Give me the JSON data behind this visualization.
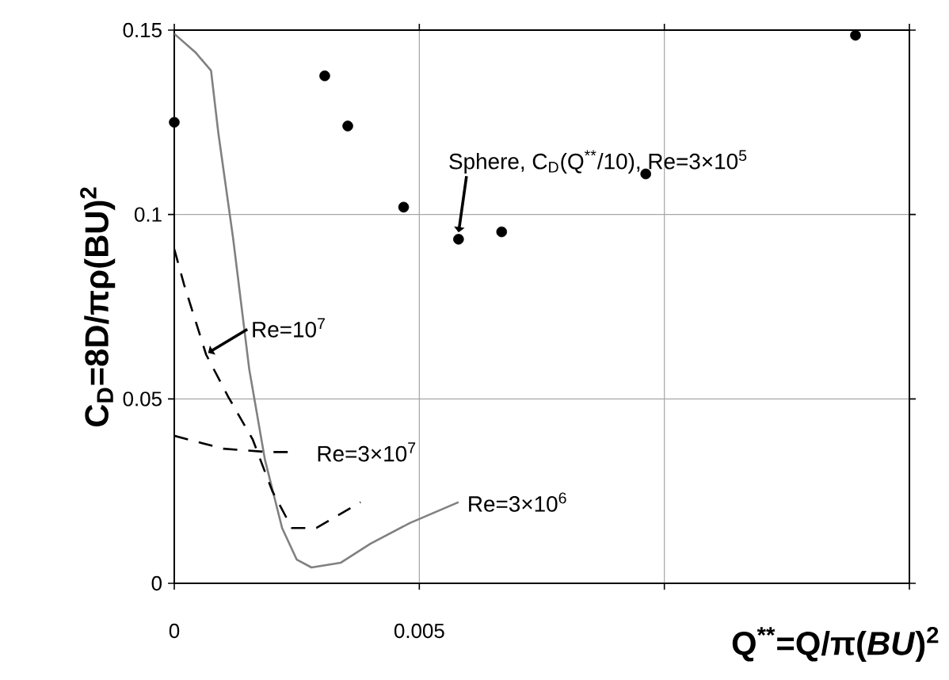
{
  "chart_data": {
    "type": "line",
    "xlabel": "Q$^{**}$=Q/π(*BU*)$^{2}$",
    "ylabel": "C$_{D}$=8D/πρ(BU)$^{2}$",
    "xlim": [
      0,
      0.015
    ],
    "ylim": [
      0,
      0.15
    ],
    "xticks": [
      0,
      0.005,
      {
        "value": 0.01,
        "label": null
      },
      {
        "value": 0.015,
        "label": null
      }
    ],
    "yticks": [
      0,
      0.05,
      0.1,
      0.15
    ],
    "grid": true,
    "series": [
      {
        "name": "Re=3×10$^{6}$",
        "color": "#808080",
        "line_style": "solid",
        "marker": "none",
        "x": [
          0,
          0.00043,
          0.00075,
          0.0009,
          0.0012,
          0.00153,
          0.00185,
          0.0022,
          0.0025,
          0.0028,
          0.0034,
          0.004,
          0.0048,
          0.0058
        ],
        "values": [
          0.149,
          0.144,
          0.139,
          0.122,
          0.0936,
          0.058,
          0.0335,
          0.015,
          0.0064,
          0.0043,
          0.0056,
          0.0107,
          0.0163,
          0.022
        ]
      },
      {
        "name": "Re=10$^{7}$",
        "color": "#000000",
        "line_style": "dashed",
        "marker": "none",
        "x": [
          0,
          0.0002,
          0.00065,
          0.0011,
          0.0016,
          0.002,
          0.0024,
          0.0029,
          0.0038
        ],
        "values": [
          0.0906,
          0.081,
          0.062,
          0.0506,
          0.039,
          0.025,
          0.015,
          0.015,
          0.022
        ]
      },
      {
        "name": "Re=3×10$^{7}$",
        "color": "#000000",
        "line_style": "dashed",
        "marker": "none",
        "x": [
          0,
          0.001,
          0.0019,
          0.0024
        ],
        "values": [
          0.04,
          0.0365,
          0.0356,
          0.0356
        ]
      },
      {
        "name": "Sphere, C$_{D}$(Q$^{**}$/10), Re=3×10$^{5}$",
        "type": "scatter",
        "color": "#000000",
        "marker": "circle",
        "x": [
          0,
          0.00307,
          0.00354,
          0.00468,
          0.0058,
          0.00668,
          0.00962,
          0.0139
        ],
        "values": [
          0.125,
          0.1376,
          0.124,
          0.102,
          0.0933,
          0.0953,
          0.111,
          0.1486
        ]
      }
    ]
  }
}
